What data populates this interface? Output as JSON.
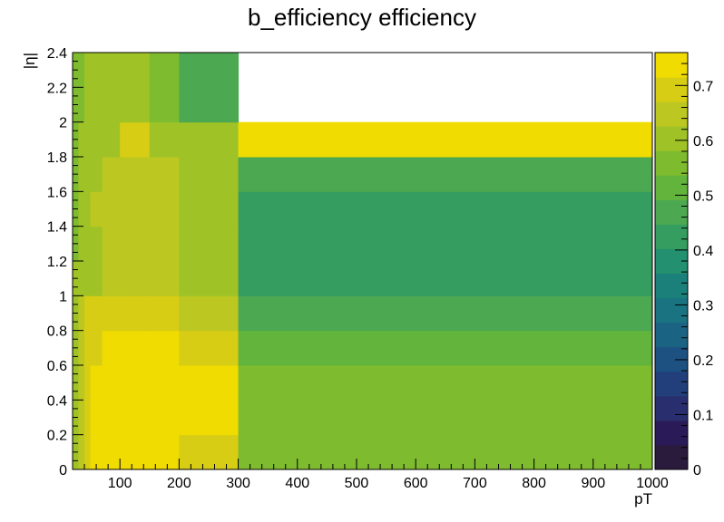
{
  "chart_data": {
    "type": "heatmap",
    "title": "b_efficiency efficiency",
    "xlabel": "pT",
    "ylabel": "|η|",
    "xlim": [
      20,
      1000
    ],
    "ylim": [
      0,
      2.4
    ],
    "x_edges": [
      20,
      30,
      40,
      50,
      70,
      100,
      150,
      200,
      300,
      600,
      1000
    ],
    "y_edges": [
      0,
      0.2,
      0.4,
      0.6,
      0.8,
      1.0,
      1.2,
      1.4,
      1.6,
      1.8,
      2.0,
      2.2,
      2.4
    ],
    "z_values": [
      [
        0.62,
        0.66,
        0.69,
        0.75,
        0.75,
        0.75,
        0.75,
        0.68,
        0.57,
        0.57
      ],
      [
        0.62,
        0.66,
        0.69,
        0.75,
        0.75,
        0.75,
        0.75,
        0.75,
        0.57,
        0.57
      ],
      [
        0.62,
        0.66,
        0.69,
        0.75,
        0.75,
        0.75,
        0.75,
        0.75,
        0.57,
        0.57
      ],
      [
        0.62,
        0.66,
        0.69,
        0.7,
        0.75,
        0.75,
        0.75,
        0.68,
        0.53,
        0.53
      ],
      [
        0.62,
        0.66,
        0.69,
        0.7,
        0.7,
        0.7,
        0.7,
        0.65,
        0.45,
        0.45
      ],
      [
        0.62,
        0.62,
        0.62,
        0.62,
        0.66,
        0.66,
        0.66,
        0.59,
        0.41,
        0.41
      ],
      [
        0.57,
        0.62,
        0.62,
        0.62,
        0.66,
        0.66,
        0.66,
        0.59,
        0.41,
        0.41
      ],
      [
        0.57,
        0.62,
        0.62,
        0.66,
        0.66,
        0.66,
        0.66,
        0.62,
        0.41,
        0.41
      ],
      [
        0.57,
        0.62,
        0.62,
        0.62,
        0.66,
        0.66,
        0.66,
        0.62,
        0.49,
        0.49
      ],
      [
        0.57,
        0.62,
        0.62,
        0.62,
        0.62,
        0.69,
        0.62,
        0.59,
        0.75,
        0.75
      ],
      [
        0.57,
        0.57,
        0.59,
        0.59,
        0.59,
        0.59,
        0.55,
        0.45,
        null,
        null
      ],
      [
        0.57,
        0.57,
        0.59,
        0.59,
        0.59,
        0.59,
        0.55,
        0.45,
        null,
        null
      ]
    ],
    "xticks": [
      100,
      200,
      300,
      400,
      500,
      600,
      700,
      800,
      900,
      1000
    ],
    "yticks": [
      0,
      0.2,
      0.4,
      0.6,
      0.8,
      1,
      1.2,
      1.4,
      1.6,
      1.8,
      2,
      2.2,
      2.4
    ],
    "colorbar": {
      "zlim": [
        0,
        0.76
      ],
      "ticks": [
        0,
        0.1,
        0.2,
        0.3,
        0.4,
        0.5,
        0.6,
        0.7
      ],
      "levels": 20,
      "colormap": [
        "#2a1b3d",
        "#2a1b58",
        "#292f6e",
        "#223f7c",
        "#1d5182",
        "#1b6383",
        "#1a7380",
        "#1c807a",
        "#23906f",
        "#359d5f",
        "#4ca851",
        "#62b43d",
        "#7fbb2e",
        "#9fc326",
        "#bcc721",
        "#d6cd14",
        "#f0dc00"
      ]
    },
    "grid": false,
    "legend": "none"
  }
}
